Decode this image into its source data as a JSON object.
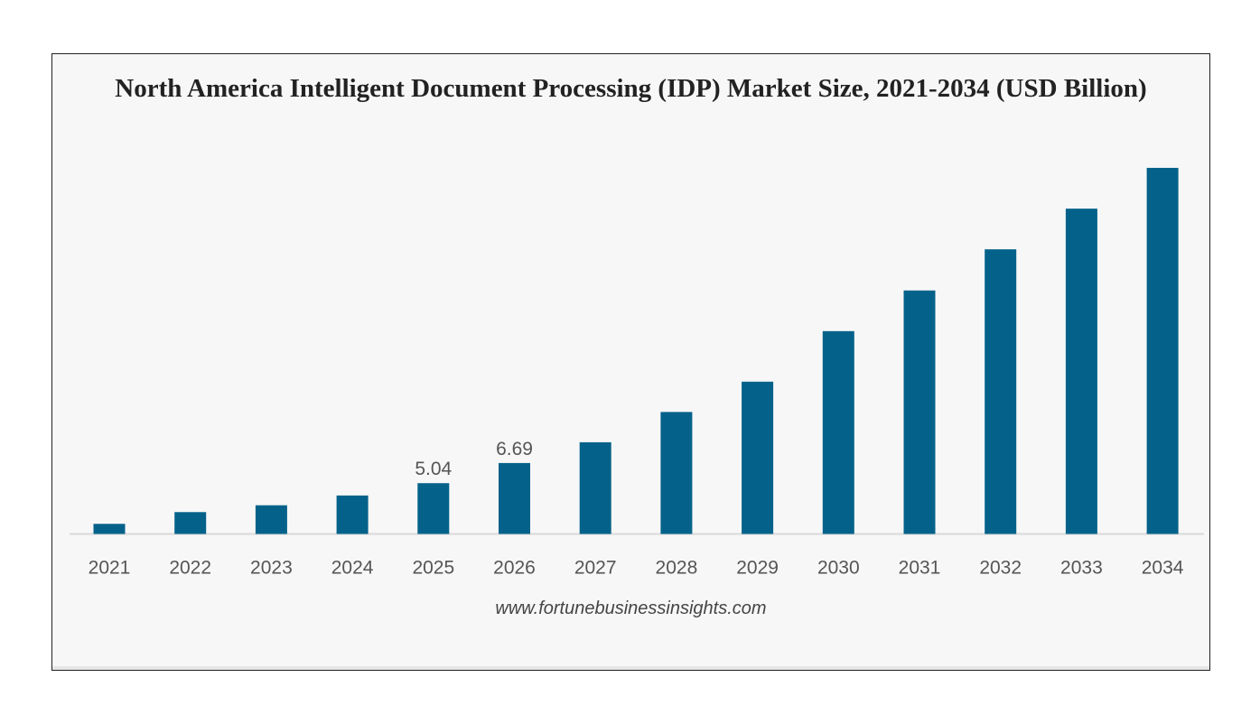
{
  "chart_data": {
    "type": "bar",
    "title": "North America Intelligent Document Processing (IDP) Market Size, 2021-2034 (USD Billion)",
    "source": "www.fortunebusinessinsights.com",
    "categories": [
      "2021",
      "2022",
      "2023",
      "2024",
      "2025",
      "2026",
      "2027",
      "2028",
      "2029",
      "2030",
      "2031",
      "2032",
      "2033",
      "2034"
    ],
    "values": [
      1.71,
      2.67,
      3.23,
      4.03,
      5.04,
      6.69,
      8.39,
      10.87,
      13.35,
      17.49,
      20.82,
      24.19,
      27.52,
      30.86
    ],
    "data_labels": {
      "2025": "5.04",
      "2026": "6.69"
    },
    "xlabel": "",
    "ylabel": "",
    "ylim": [
      0.88,
      33
    ],
    "grid": false,
    "bar_color": "#04628a",
    "label_color": "#555555"
  }
}
